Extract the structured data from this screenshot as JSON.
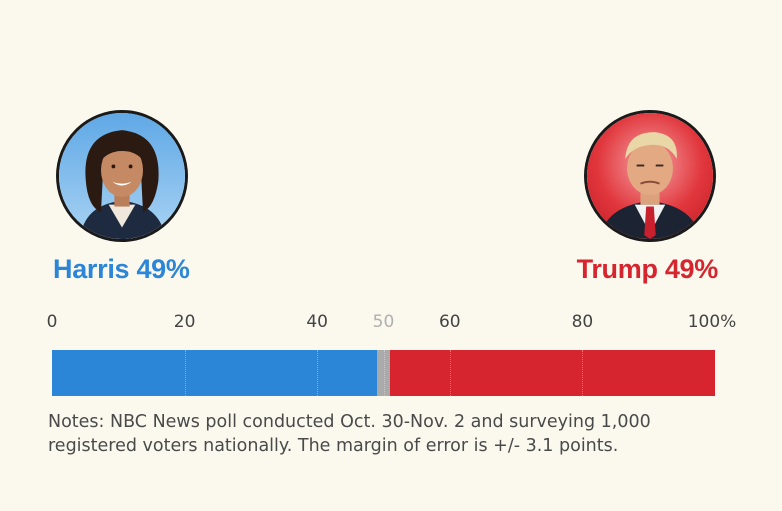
{
  "colors": {
    "harris": "#2b86d8",
    "trump": "#d7252f",
    "undecided": "#aaaaaa",
    "background": "#fbf8ee"
  },
  "candidates": {
    "left": {
      "label": "Harris 49%",
      "avatar_icon": "harris-portrait-icon"
    },
    "right": {
      "label": "Trump 49%",
      "avatar_icon": "trump-portrait-icon"
    }
  },
  "chart_data": {
    "type": "bar",
    "orientation": "horizontal-stacked",
    "xlim": [
      0,
      100
    ],
    "ticks": [
      "0",
      "20",
      "40",
      "50",
      "60",
      "80",
      "100%"
    ],
    "tick_values": [
      0,
      20,
      40,
      50,
      60,
      80,
      100
    ],
    "muted_tick": "50",
    "series": [
      {
        "name": "Harris",
        "value": 49,
        "color": "#2b86d8"
      },
      {
        "name": "",
        "value": 2,
        "color": "#aaaaaa"
      },
      {
        "name": "Trump",
        "value": 49,
        "color": "#d7252f"
      }
    ]
  },
  "notes": "Notes: NBC News poll conducted Oct. 30-Nov. 2 and surveying 1,000 registered voters nationally. The margin of error is +/- 3.1 points."
}
